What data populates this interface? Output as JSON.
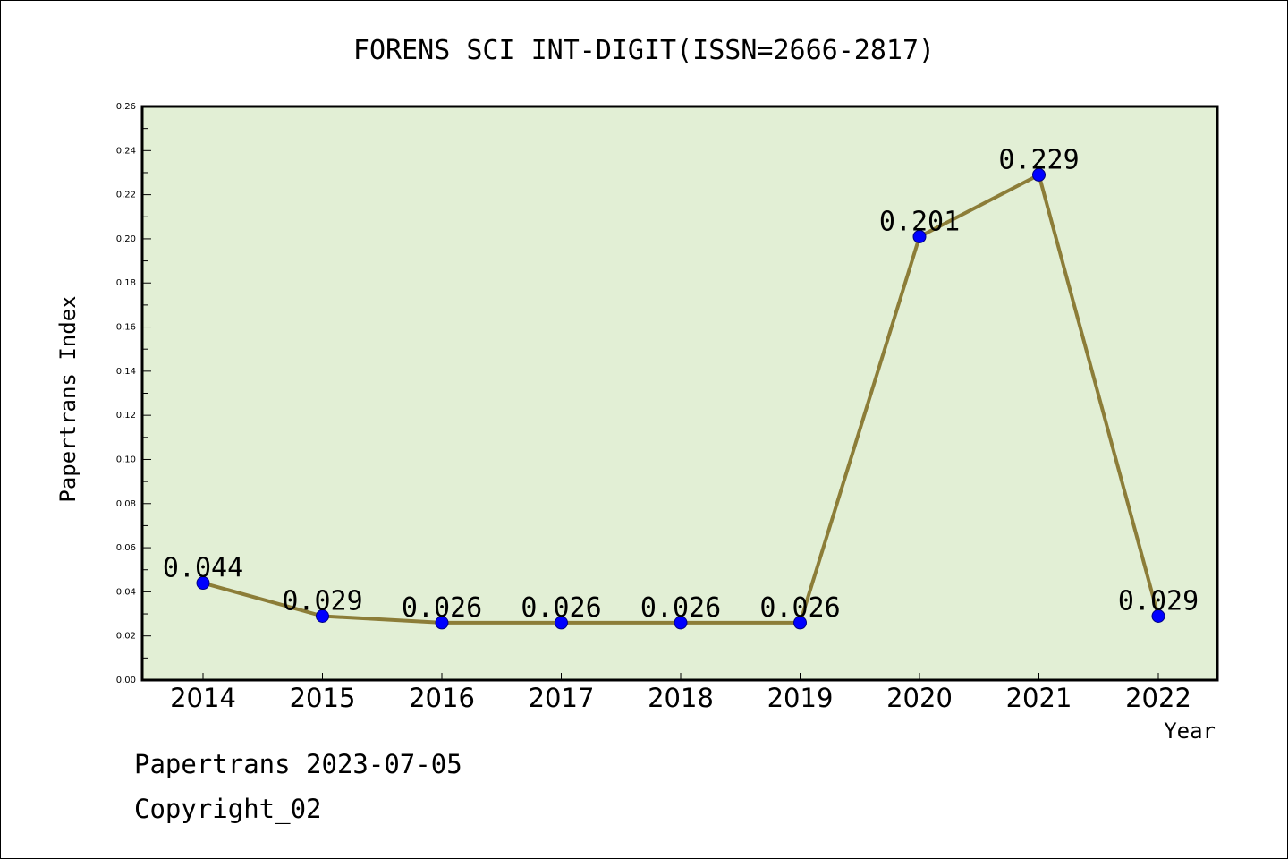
{
  "chart_data": {
    "type": "line",
    "title": "FORENS SCI INT-DIGIT(ISSN=2666-2817)",
    "xlabel": "Year",
    "ylabel": "Papertrans Index",
    "categories": [
      "2014",
      "2015",
      "2016",
      "2017",
      "2018",
      "2019",
      "2020",
      "2021",
      "2022"
    ],
    "values": [
      0.044,
      0.029,
      0.026,
      0.026,
      0.026,
      0.026,
      0.201,
      0.229,
      0.029
    ],
    "data_labels": [
      "0.044",
      "0.029",
      "0.026",
      "0.026",
      "0.026",
      "0.026",
      "0.201",
      "0.229",
      "0.029"
    ],
    "ylim": [
      0,
      0.26
    ],
    "yticks": [
      "0.00",
      "0.02",
      "0.04",
      "0.06",
      "0.08",
      "0.10",
      "0.12",
      "0.14",
      "0.16",
      "0.18",
      "0.20",
      "0.22",
      "0.24",
      "0.26"
    ],
    "grid": false,
    "legend": "none",
    "colors": {
      "plot_background": "#e2efd5",
      "line": "#8c7d38",
      "marker_fill": "#0000ff",
      "marker_edge": "#000080"
    }
  },
  "footer": {
    "date_line": "Papertrans 2023-07-05",
    "copyright": "Copyright_02"
  }
}
